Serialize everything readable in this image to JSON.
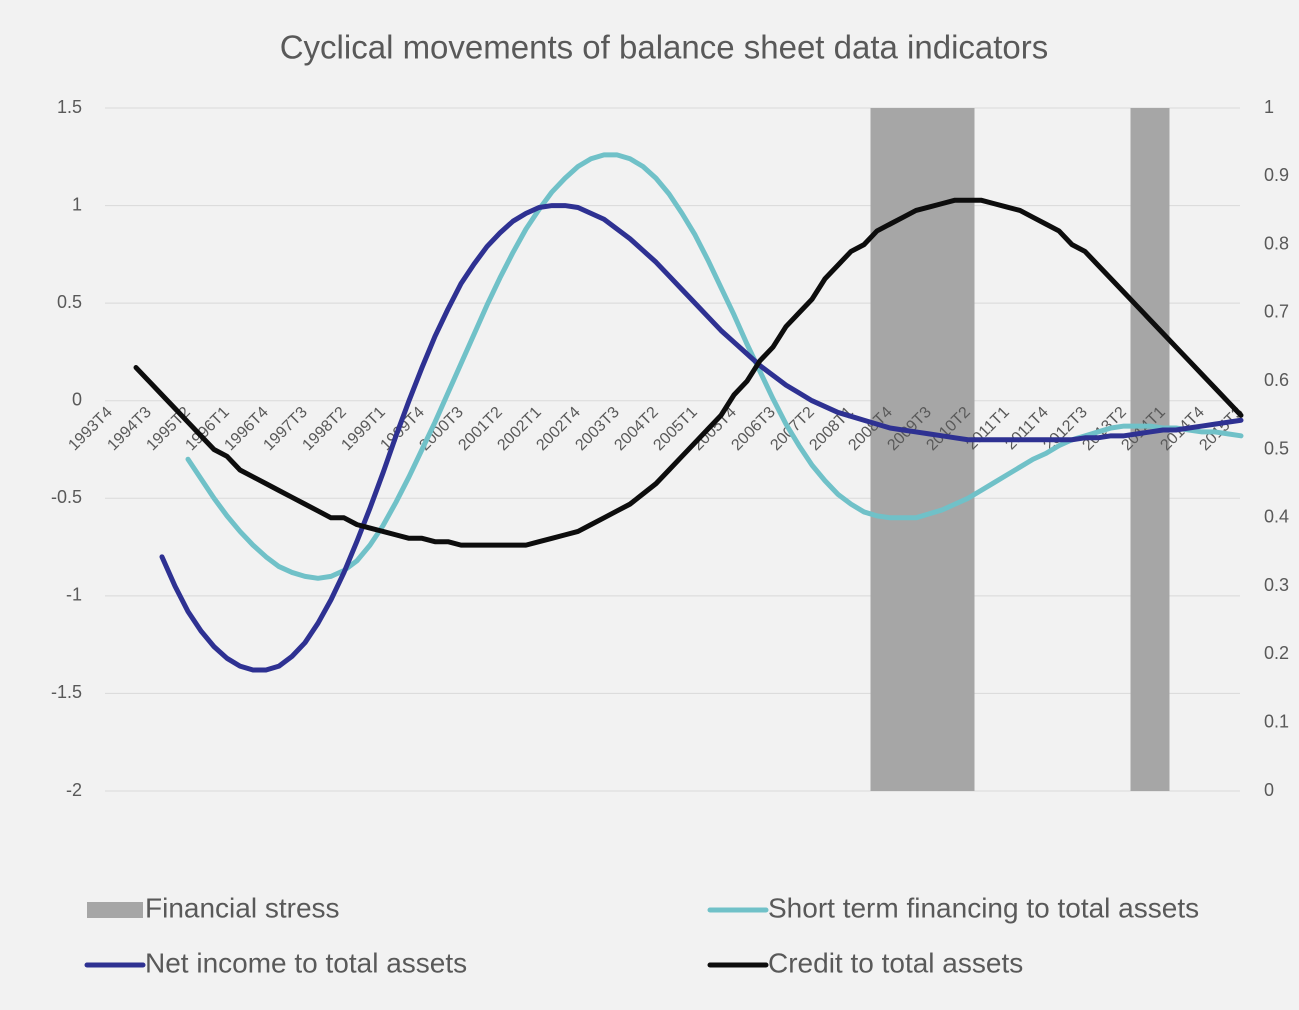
{
  "chart_data": {
    "type": "combo",
    "title": "Cyclical movements of balance sheet data indicators",
    "categories": [
      "1993T4",
      null,
      null,
      "1994T3",
      null,
      null,
      "1995T2",
      null,
      null,
      "1996T1",
      null,
      null,
      "1996T4",
      null,
      null,
      "1997T3",
      null,
      null,
      "1998T2",
      null,
      null,
      "1999T1",
      null,
      null,
      "1999T4",
      null,
      null,
      "2000T3",
      null,
      null,
      "2001T2",
      null,
      null,
      "2002T1",
      null,
      null,
      "2002T4",
      null,
      null,
      "2003T3",
      null,
      null,
      "2004T2",
      null,
      null,
      "2005T1",
      null,
      null,
      "2005T4",
      null,
      null,
      "2006T3",
      null,
      null,
      "2007T2",
      null,
      null,
      "2008T1",
      null,
      null,
      "2008T4",
      null,
      null,
      "2009T3",
      null,
      null,
      "2010T2",
      null,
      null,
      "2011T1",
      null,
      null,
      "2011T4",
      null,
      null,
      "2012T3",
      null,
      null,
      "2013T2",
      null,
      null,
      "2014T1",
      null,
      null,
      "2014T4",
      null,
      null,
      "2015T3"
    ],
    "series": [
      {
        "name": "Financial stress",
        "type": "bar",
        "axis": "y2",
        "color": "#a6a6a6",
        "values": [
          null,
          null,
          null,
          null,
          null,
          null,
          null,
          null,
          null,
          null,
          null,
          null,
          null,
          null,
          null,
          null,
          null,
          null,
          null,
          null,
          null,
          null,
          null,
          null,
          null,
          null,
          null,
          null,
          null,
          null,
          null,
          null,
          null,
          null,
          null,
          null,
          null,
          null,
          null,
          null,
          null,
          null,
          null,
          null,
          null,
          null,
          null,
          null,
          null,
          null,
          null,
          null,
          null,
          null,
          null,
          null,
          null,
          null,
          null,
          1,
          1,
          1,
          1,
          1,
          1,
          1,
          1,
          null,
          null,
          null,
          null,
          null,
          null,
          null,
          null,
          null,
          null,
          null,
          null,
          1,
          1,
          1,
          null,
          null,
          null,
          null,
          null,
          null
        ]
      },
      {
        "name": "Short term financing to total assets",
        "type": "line",
        "color": "#70c1c8",
        "values": [
          null,
          null,
          null,
          null,
          null,
          null,
          -0.3,
          -0.4,
          -0.5,
          -0.59,
          -0.67,
          -0.74,
          -0.8,
          -0.85,
          -0.88,
          -0.9,
          -0.91,
          -0.9,
          -0.87,
          -0.82,
          -0.74,
          -0.64,
          -0.52,
          -0.39,
          -0.25,
          -0.11,
          0.04,
          0.19,
          0.34,
          0.49,
          0.63,
          0.76,
          0.88,
          0.98,
          1.07,
          1.14,
          1.2,
          1.24,
          1.26,
          1.26,
          1.24,
          1.2,
          1.14,
          1.06,
          0.96,
          0.85,
          0.72,
          0.58,
          0.44,
          0.29,
          0.15,
          0.01,
          -0.12,
          -0.23,
          -0.33,
          -0.41,
          -0.48,
          -0.53,
          -0.57,
          -0.59,
          -0.6,
          -0.6,
          -0.6,
          -0.58,
          -0.56,
          -0.53,
          -0.5,
          -0.46,
          -0.42,
          -0.38,
          -0.34,
          -0.3,
          -0.27,
          -0.23,
          -0.2,
          -0.18,
          -0.16,
          -0.14,
          -0.13,
          -0.13,
          -0.13,
          -0.14,
          -0.14,
          -0.15,
          -0.16,
          -0.16,
          -0.17,
          -0.18
        ]
      },
      {
        "name": "Net income to total assets",
        "type": "line",
        "color": "#2e3192",
        "values": [
          null,
          null,
          null,
          null,
          -0.8,
          -0.95,
          -1.08,
          -1.18,
          -1.26,
          -1.32,
          -1.36,
          -1.38,
          -1.38,
          -1.36,
          -1.31,
          -1.24,
          -1.14,
          -1.02,
          -0.88,
          -0.72,
          -0.55,
          -0.37,
          -0.18,
          0.0,
          0.17,
          0.33,
          0.47,
          0.6,
          0.7,
          0.79,
          0.86,
          0.92,
          0.96,
          0.99,
          1.0,
          1.0,
          0.99,
          0.96,
          0.93,
          0.88,
          0.83,
          0.77,
          0.71,
          0.64,
          0.57,
          0.5,
          0.43,
          0.36,
          0.3,
          0.24,
          0.18,
          0.13,
          0.08,
          0.04,
          0.0,
          -0.03,
          -0.06,
          -0.08,
          -0.1,
          -0.12,
          -0.14,
          -0.15,
          -0.16,
          -0.17,
          -0.18,
          -0.19,
          -0.2,
          -0.2,
          -0.2,
          -0.2,
          -0.2,
          -0.2,
          -0.2,
          -0.2,
          -0.2,
          -0.19,
          -0.19,
          -0.18,
          -0.18,
          -0.17,
          -0.16,
          -0.15,
          -0.15,
          -0.14,
          -0.13,
          -0.12,
          -0.11,
          -0.1
        ]
      },
      {
        "name": "Credit to total assets",
        "type": "line",
        "axis": "y2",
        "color": "#0d0d0d",
        "values": [
          null,
          null,
          0.62,
          0.6,
          0.58,
          0.56,
          0.54,
          0.52,
          0.5,
          0.49,
          0.47,
          0.46,
          0.45,
          0.44,
          0.43,
          0.42,
          0.41,
          0.4,
          0.4,
          0.39,
          0.385,
          0.38,
          0.375,
          0.37,
          0.37,
          0.365,
          0.365,
          0.36,
          0.36,
          0.36,
          0.36,
          0.36,
          0.36,
          0.365,
          0.37,
          0.375,
          0.38,
          0.39,
          0.4,
          0.41,
          0.42,
          0.435,
          0.45,
          0.47,
          0.49,
          0.51,
          0.53,
          0.55,
          0.58,
          0.6,
          0.63,
          0.65,
          0.68,
          0.7,
          0.72,
          0.75,
          0.77,
          0.79,
          0.8,
          0.82,
          0.83,
          0.84,
          0.85,
          0.855,
          0.86,
          0.865,
          0.865,
          0.865,
          0.86,
          0.855,
          0.85,
          0.84,
          0.83,
          0.82,
          0.8,
          0.79,
          0.77,
          0.75,
          0.73,
          0.71,
          0.69,
          0.67,
          0.65,
          0.63,
          0.61,
          0.59,
          0.57,
          0.55
        ]
      }
    ],
    "ylim": [
      -2,
      1.5
    ],
    "yticks": [
      -2,
      -1.5,
      -1,
      -0.5,
      0,
      0.5,
      1,
      1.5
    ],
    "y2lim": [
      0,
      1
    ],
    "y2ticks": [
      0,
      0.1,
      0.2,
      0.3,
      0.4,
      0.5,
      0.6,
      0.7,
      0.8,
      0.9,
      1
    ],
    "grid": true,
    "legend": "bottom"
  }
}
